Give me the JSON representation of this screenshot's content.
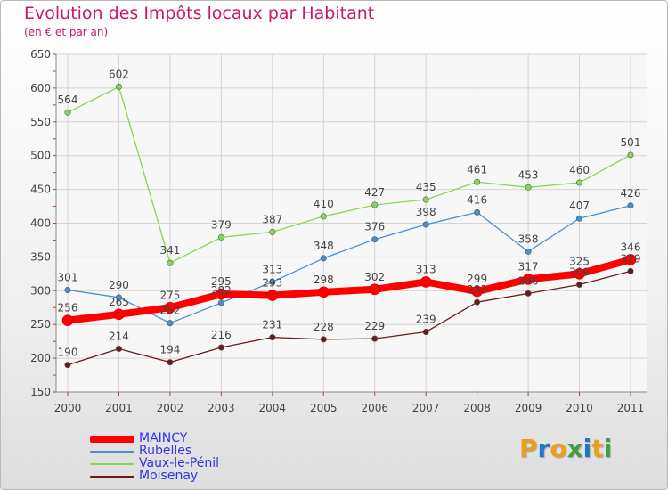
{
  "header": {
    "title": "Evolution des Impôts locaux par Habitant",
    "subtitle": "(en € et par an)"
  },
  "logo": {
    "letters": [
      "P",
      "r",
      "o",
      "x",
      "i",
      "t",
      "i"
    ],
    "colors": [
      "#e8a020",
      "#1e78c8",
      "#e8a020",
      "#40a040",
      "#1e78c8",
      "#e8a020",
      "#40a040"
    ]
  },
  "chart_data": {
    "type": "line",
    "x": [
      "2000",
      "2001",
      "2002",
      "2003",
      "2004",
      "2005",
      "2006",
      "2007",
      "2008",
      "2009",
      "2010",
      "2011"
    ],
    "ylim": [
      150,
      650
    ],
    "yticks": [
      150,
      200,
      250,
      300,
      350,
      400,
      450,
      500,
      550,
      600,
      650
    ],
    "grid": true,
    "legend_placement": "bottom-left",
    "series": [
      {
        "name": "Rubelles",
        "color": "#4b8fcf",
        "values": [
          301,
          290,
          252,
          282,
          313,
          348,
          376,
          398,
          416,
          358,
          407,
          426
        ]
      },
      {
        "name": "Vaux-le-Pénil",
        "color": "#8ad65a",
        "values": [
          564,
          602,
          341,
          379,
          387,
          410,
          427,
          435,
          461,
          453,
          460,
          501
        ]
      },
      {
        "name": "Moisenay",
        "color": "#6a1a1a",
        "values": [
          190,
          214,
          194,
          216,
          231,
          228,
          229,
          239,
          283,
          296,
          309,
          329
        ]
      },
      {
        "name": "MAINCY",
        "color": "#ff0000",
        "values": [
          256,
          265,
          275,
          295,
          293,
          298,
          302,
          313,
          299,
          317,
          325,
          346
        ]
      }
    ],
    "point_labels": {
      "Rubelles": [
        "301",
        "290",
        "252",
        "282",
        "313",
        "348",
        "376",
        "398",
        "416",
        "358",
        "407",
        "426"
      ],
      "Vaux-le-Pénil": [
        "564",
        "602",
        "341",
        "379",
        "387",
        "410",
        "427",
        "435",
        "461",
        "453",
        "460",
        "501"
      ],
      "Moisenay": [
        "190",
        "214",
        "194",
        "216",
        "231",
        "228",
        "229",
        "239",
        "283",
        "296",
        "309",
        "329"
      ],
      "MAINCY": [
        "256",
        "265",
        "275",
        "295",
        "293",
        "298",
        "302",
        "313",
        "299",
        "317",
        "325",
        "346"
      ]
    },
    "legend_order": [
      "MAINCY",
      "Rubelles",
      "Vaux-le-Pénil",
      "Moisenay"
    ]
  }
}
